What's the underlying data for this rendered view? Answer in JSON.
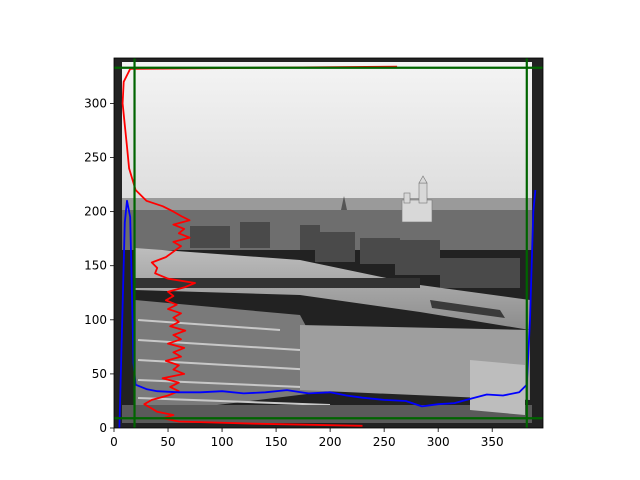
{
  "chart_data": {
    "type": "line",
    "title": "",
    "xlabel": "",
    "ylabel": "",
    "xlim": [
      0,
      397
    ],
    "ylim": [
      0,
      342
    ],
    "grid": false,
    "background": "grayscale photograph of a river town with timber rafts, a bridge and a church",
    "x_ticks": [
      0,
      50,
      100,
      150,
      200,
      250,
      300,
      350
    ],
    "y_ticks": [
      0,
      50,
      100,
      150,
      200,
      250,
      300
    ],
    "series": [
      {
        "color": "#ff0000",
        "orientation": "vertical",
        "points": [
          [
            230,
            2
          ],
          [
            130,
            4
          ],
          [
            60,
            6
          ],
          [
            45,
            9
          ],
          [
            55,
            12
          ],
          [
            40,
            15
          ],
          [
            35,
            18
          ],
          [
            28,
            22
          ],
          [
            35,
            26
          ],
          [
            50,
            30
          ],
          [
            60,
            34
          ],
          [
            52,
            38
          ],
          [
            60,
            42
          ],
          [
            45,
            46
          ],
          [
            65,
            50
          ],
          [
            55,
            54
          ],
          [
            60,
            58
          ],
          [
            48,
            62
          ],
          [
            62,
            66
          ],
          [
            55,
            70
          ],
          [
            65,
            74
          ],
          [
            50,
            78
          ],
          [
            62,
            82
          ],
          [
            55,
            86
          ],
          [
            66,
            90
          ],
          [
            52,
            94
          ],
          [
            60,
            98
          ],
          [
            55,
            102
          ],
          [
            62,
            106
          ],
          [
            50,
            110
          ],
          [
            58,
            114
          ],
          [
            48,
            118
          ],
          [
            55,
            122
          ],
          [
            50,
            126
          ],
          [
            65,
            130
          ],
          [
            75,
            134
          ],
          [
            50,
            138
          ],
          [
            38,
            143
          ],
          [
            40,
            148
          ],
          [
            35,
            153
          ],
          [
            48,
            158
          ],
          [
            55,
            163
          ],
          [
            62,
            168
          ],
          [
            55,
            172
          ],
          [
            70,
            176
          ],
          [
            60,
            180
          ],
          [
            65,
            184
          ],
          [
            55,
            188
          ],
          [
            70,
            192
          ],
          [
            62,
            196
          ],
          [
            55,
            200
          ],
          [
            45,
            205
          ],
          [
            30,
            210
          ],
          [
            20,
            220
          ],
          [
            14,
            240
          ],
          [
            12,
            260
          ],
          [
            10,
            280
          ],
          [
            8,
            300
          ],
          [
            9,
            320
          ],
          [
            15,
            332
          ],
          [
            262,
            334
          ]
        ]
      },
      {
        "color": "#0000ff",
        "orientation": "horizontal",
        "points": [
          [
            5,
            0
          ],
          [
            10,
            190
          ],
          [
            12,
            210
          ],
          [
            15,
            195
          ],
          [
            18,
            60
          ],
          [
            20,
            40
          ],
          [
            30,
            36
          ],
          [
            40,
            34
          ],
          [
            60,
            33
          ],
          [
            80,
            33
          ],
          [
            100,
            34
          ],
          [
            120,
            32
          ],
          [
            140,
            33
          ],
          [
            160,
            35
          ],
          [
            180,
            32
          ],
          [
            200,
            33
          ],
          [
            215,
            30
          ],
          [
            230,
            28
          ],
          [
            250,
            26
          ],
          [
            270,
            25
          ],
          [
            285,
            20
          ],
          [
            300,
            22
          ],
          [
            315,
            23
          ],
          [
            330,
            27
          ],
          [
            345,
            31
          ],
          [
            360,
            30
          ],
          [
            375,
            33
          ],
          [
            382,
            40
          ],
          [
            385,
            100
          ],
          [
            388,
            200
          ],
          [
            390,
            220
          ]
        ]
      },
      {
        "color": "#006400",
        "orientation": "boundary",
        "lines": [
          {
            "axis": "x",
            "value": 19
          },
          {
            "axis": "x",
            "value": 382
          },
          {
            "axis": "y",
            "value": 9
          },
          {
            "axis": "y",
            "value": 333
          }
        ]
      }
    ]
  }
}
